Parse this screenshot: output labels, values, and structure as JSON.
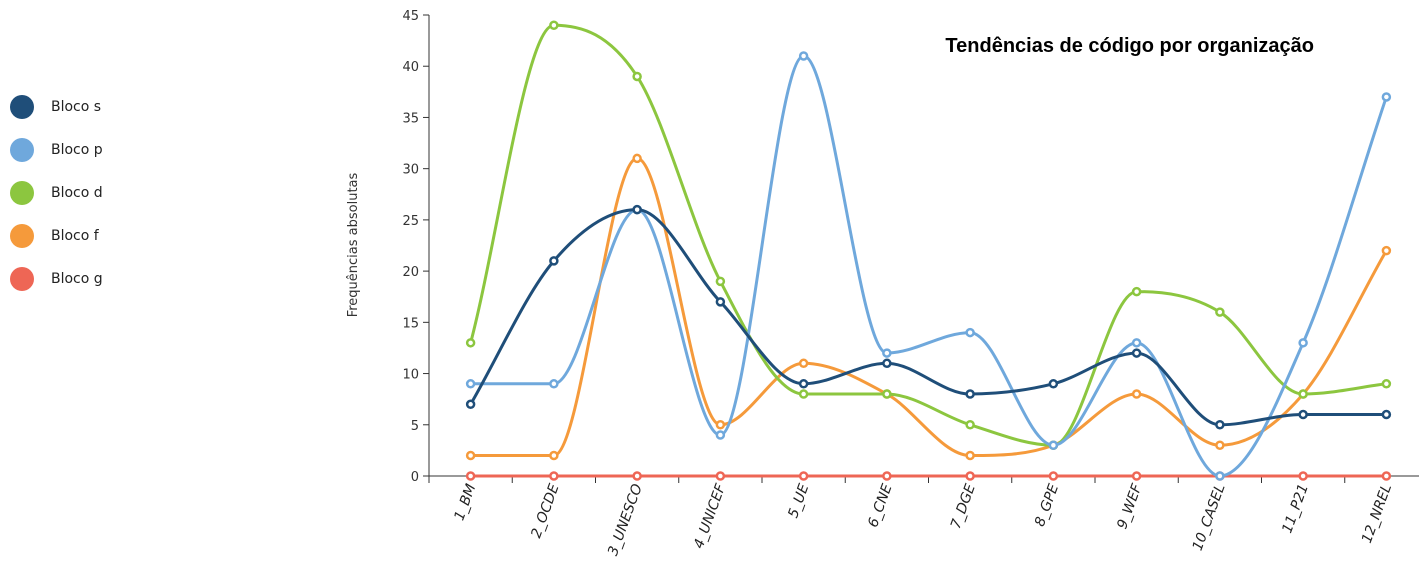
{
  "chart_data": {
    "type": "line",
    "title": "Tendências de código por organização",
    "xlabel": "",
    "ylabel": "Frequências absolutas",
    "ylim": [
      0,
      45
    ],
    "y_ticks": [
      0,
      5,
      10,
      15,
      20,
      25,
      30,
      35,
      40,
      45
    ],
    "grid": false,
    "legend_position": "left",
    "categories": [
      "1_BM",
      "2_OCDE",
      "3_UNESCO",
      "4_UNICEF",
      "5_UE",
      "6_CNE",
      "7_DGE",
      "8_GPE",
      "9_WEF",
      "10_CASEL",
      "11_P21",
      "12_NREL"
    ],
    "series": [
      {
        "name": "Bloco s",
        "color": "#1f4e79",
        "values": [
          7,
          21,
          26,
          17,
          9,
          11,
          8,
          9,
          12,
          5,
          6,
          6
        ]
      },
      {
        "name": "Bloco p",
        "color": "#6fa8dc",
        "values": [
          9,
          9,
          26,
          4,
          41,
          12,
          14,
          3,
          13,
          0,
          13,
          37
        ]
      },
      {
        "name": "Bloco d",
        "color": "#8cc63f",
        "values": [
          13,
          44,
          39,
          19,
          8,
          8,
          5,
          3,
          18,
          16,
          8,
          9
        ]
      },
      {
        "name": "Bloco f",
        "color": "#f59a3b",
        "values": [
          2,
          2,
          31,
          5,
          11,
          8,
          2,
          3,
          8,
          3,
          8,
          22
        ]
      },
      {
        "name": "Bloco g",
        "color": "#ee6655",
        "values": [
          0,
          0,
          0,
          0,
          0,
          0,
          0,
          0,
          0,
          0,
          0,
          0
        ]
      }
    ]
  }
}
